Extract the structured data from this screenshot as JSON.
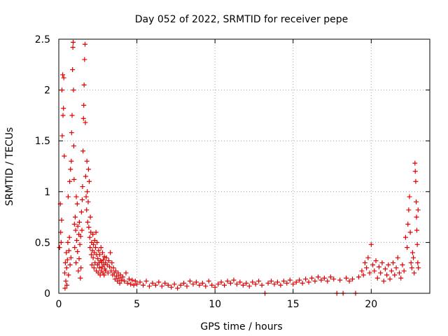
{
  "chart_data": {
    "type": "scatter",
    "title": "Day 052 of 2022, SRMTID for receiver pepe",
    "xlabel": "GPS time / hours",
    "ylabel": "SRMTID / TECUs",
    "xlim": [
      0,
      23.75
    ],
    "ylim": [
      0,
      2.5
    ],
    "xticks": [
      0,
      5,
      10,
      15,
      20
    ],
    "yticks": [
      0,
      0.5,
      1,
      1.5,
      2,
      2.5
    ],
    "xtick_labels": [
      "0",
      "5",
      "10",
      "15",
      "20"
    ],
    "ytick_labels": [
      "0",
      "0.5",
      "1",
      "1.5",
      "2",
      "2.5"
    ],
    "grid": true,
    "marker": "+",
    "series": [
      {
        "name": "pepe",
        "color": "#e00000",
        "points": [
          [
            0.05,
            0.45
          ],
          [
            0.1,
            0.88
          ],
          [
            0.12,
            0.6
          ],
          [
            0.15,
            0.5
          ],
          [
            0.18,
            0.72
          ],
          [
            0.2,
            2.0
          ],
          [
            0.22,
            1.55
          ],
          [
            0.25,
            2.15
          ],
          [
            0.27,
            1.75
          ],
          [
            0.3,
            1.82
          ],
          [
            0.32,
            2.12
          ],
          [
            0.35,
            1.35
          ],
          [
            0.38,
            0.2
          ],
          [
            0.4,
            0.05
          ],
          [
            0.42,
            0.3
          ],
          [
            0.45,
            0.12
          ],
          [
            0.48,
            0.4
          ],
          [
            0.5,
            0.25
          ],
          [
            0.52,
            0.08
          ],
          [
            0.55,
            0.33
          ],
          [
            0.58,
            0.5
          ],
          [
            0.6,
            0.95
          ],
          [
            0.62,
            0.18
          ],
          [
            0.65,
            0.42
          ],
          [
            0.68,
            0.55
          ],
          [
            0.7,
            1.1
          ],
          [
            0.72,
            0.28
          ],
          [
            0.75,
            1.22
          ],
          [
            0.78,
            0.35
          ],
          [
            0.8,
            1.3
          ],
          [
            0.82,
            1.58
          ],
          [
            0.85,
            1.75
          ],
          [
            0.88,
            2.2
          ],
          [
            0.9,
            2.42
          ],
          [
            0.92,
            2.47
          ],
          [
            0.94,
            2.0
          ],
          [
            0.96,
            1.45
          ],
          [
            0.98,
            1.12
          ],
          [
            1.0,
            0.68
          ],
          [
            1.02,
            0.45
          ],
          [
            1.05,
            0.75
          ],
          [
            1.08,
            0.62
          ],
          [
            1.1,
            0.3
          ],
          [
            1.12,
            0.95
          ],
          [
            1.15,
            0.52
          ],
          [
            1.18,
            0.88
          ],
          [
            1.2,
            0.41
          ],
          [
            1.22,
            0.66
          ],
          [
            1.25,
            0.22
          ],
          [
            1.28,
            0.58
          ],
          [
            1.3,
            0.34
          ],
          [
            1.32,
            0.7
          ],
          [
            1.35,
            0.48
          ],
          [
            1.38,
            0.15
          ],
          [
            1.4,
            0.56
          ],
          [
            1.42,
            0.25
          ],
          [
            1.45,
            0.8
          ],
          [
            1.48,
            0.62
          ],
          [
            1.5,
            0.92
          ],
          [
            1.52,
            1.05
          ],
          [
            1.55,
            1.4
          ],
          [
            1.58,
            1.72
          ],
          [
            1.6,
            1.85
          ],
          [
            1.62,
            2.05
          ],
          [
            1.65,
            2.3
          ],
          [
            1.68,
            2.45
          ],
          [
            1.7,
            1.68
          ],
          [
            1.72,
            1.15
          ],
          [
            1.75,
            0.95
          ],
          [
            1.78,
            0.82
          ],
          [
            1.8,
            1.3
          ],
          [
            1.82,
            1.0
          ],
          [
            1.85,
            0.7
          ],
          [
            1.88,
            0.9
          ],
          [
            1.9,
            1.22
          ],
          [
            1.92,
            0.65
          ],
          [
            1.95,
            1.1
          ],
          [
            1.98,
            0.55
          ],
          [
            2.0,
            0.45
          ],
          [
            2.02,
            0.75
          ],
          [
            2.05,
            0.6
          ],
          [
            2.08,
            0.38
          ],
          [
            2.1,
            0.5
          ],
          [
            2.12,
            0.28
          ],
          [
            2.15,
            0.42
          ],
          [
            2.18,
            0.58
          ],
          [
            2.2,
            0.35
          ],
          [
            2.22,
            0.48
          ],
          [
            2.25,
            0.25
          ],
          [
            2.28,
            0.4
          ],
          [
            2.3,
            0.52
          ],
          [
            2.32,
            0.3
          ],
          [
            2.35,
            0.45
          ],
          [
            2.38,
            0.6
          ],
          [
            2.4,
            0.22
          ],
          [
            2.42,
            0.38
          ],
          [
            2.45,
            0.5
          ],
          [
            2.48,
            0.28
          ],
          [
            2.5,
            0.34
          ],
          [
            2.52,
            0.2
          ],
          [
            2.55,
            0.42
          ],
          [
            2.58,
            0.3
          ],
          [
            2.6,
            0.25
          ],
          [
            2.62,
            0.38
          ],
          [
            2.65,
            0.18
          ],
          [
            2.68,
            0.32
          ],
          [
            2.7,
            0.45
          ],
          [
            2.72,
            0.22
          ],
          [
            2.75,
            0.3
          ],
          [
            2.78,
            0.26
          ],
          [
            2.8,
            0.4
          ],
          [
            2.82,
            0.2
          ],
          [
            2.85,
            0.33
          ],
          [
            2.88,
            0.28
          ],
          [
            2.9,
            0.18
          ],
          [
            2.92,
            0.36
          ],
          [
            2.95,
            0.24
          ],
          [
            2.98,
            0.3
          ],
          [
            3.0,
            0.22
          ],
          [
            3.05,
            0.35
          ],
          [
            3.1,
            0.28
          ],
          [
            3.15,
            0.2
          ],
          [
            3.2,
            0.32
          ],
          [
            3.25,
            0.26
          ],
          [
            3.3,
            0.4
          ],
          [
            3.35,
            0.22
          ],
          [
            3.4,
            0.3
          ],
          [
            3.45,
            0.18
          ],
          [
            3.5,
            0.25
          ],
          [
            3.55,
            0.2
          ],
          [
            3.6,
            0.14
          ],
          [
            3.65,
            0.22
          ],
          [
            3.7,
            0.17
          ],
          [
            3.75,
            0.12
          ],
          [
            3.8,
            0.2
          ],
          [
            3.85,
            0.15
          ],
          [
            3.9,
            0.1
          ],
          [
            3.95,
            0.18
          ],
          [
            4.0,
            0.13
          ],
          [
            4.1,
            0.16
          ],
          [
            4.2,
            0.12
          ],
          [
            4.3,
            0.2
          ],
          [
            4.4,
            0.1
          ],
          [
            4.5,
            0.14
          ],
          [
            4.6,
            0.09
          ],
          [
            4.7,
            0.13
          ],
          [
            4.8,
            0.08
          ],
          [
            4.9,
            0.12
          ],
          [
            5.0,
            0.09
          ],
          [
            5.2,
            0.11
          ],
          [
            5.4,
            0.08
          ],
          [
            5.6,
            0.12
          ],
          [
            5.8,
            0.07
          ],
          [
            6.0,
            0.1
          ],
          [
            6.2,
            0.08
          ],
          [
            6.4,
            0.11
          ],
          [
            6.6,
            0.07
          ],
          [
            6.8,
            0.1
          ],
          [
            7.0,
            0.08
          ],
          [
            7.2,
            0.06
          ],
          [
            7.4,
            0.09
          ],
          [
            7.6,
            0.05
          ],
          [
            7.8,
            0.08
          ],
          [
            8.0,
            0.1
          ],
          [
            8.2,
            0.07
          ],
          [
            8.4,
            0.12
          ],
          [
            8.6,
            0.09
          ],
          [
            8.8,
            0.11
          ],
          [
            9.0,
            0.08
          ],
          [
            9.2,
            0.1
          ],
          [
            9.4,
            0.07
          ],
          [
            9.6,
            0.12
          ],
          [
            9.8,
            0.08
          ],
          [
            10.0,
            0.06
          ],
          [
            10.2,
            0.09
          ],
          [
            10.4,
            0.11
          ],
          [
            10.6,
            0.08
          ],
          [
            10.8,
            0.12
          ],
          [
            11.0,
            0.1
          ],
          [
            11.2,
            0.13
          ],
          [
            11.4,
            0.09
          ],
          [
            11.6,
            0.11
          ],
          [
            11.8,
            0.08
          ],
          [
            12.0,
            0.1
          ],
          [
            12.2,
            0.07
          ],
          [
            12.4,
            0.11
          ],
          [
            12.6,
            0.09
          ],
          [
            12.8,
            0.12
          ],
          [
            13.0,
            0.08
          ],
          [
            13.2,
            0.0
          ],
          [
            13.4,
            0.1
          ],
          [
            13.6,
            0.12
          ],
          [
            13.8,
            0.09
          ],
          [
            14.0,
            0.11
          ],
          [
            14.2,
            0.08
          ],
          [
            14.4,
            0.12
          ],
          [
            14.6,
            0.1
          ],
          [
            14.8,
            0.13
          ],
          [
            15.0,
            0.09
          ],
          [
            15.2,
            0.11
          ],
          [
            15.4,
            0.13
          ],
          [
            15.6,
            0.1
          ],
          [
            15.8,
            0.14
          ],
          [
            16.0,
            0.11
          ],
          [
            16.2,
            0.15
          ],
          [
            16.4,
            0.12
          ],
          [
            16.6,
            0.16
          ],
          [
            16.8,
            0.13
          ],
          [
            17.0,
            0.15
          ],
          [
            17.2,
            0.12
          ],
          [
            17.4,
            0.16
          ],
          [
            17.6,
            0.14
          ],
          [
            17.8,
            0.0
          ],
          [
            18.0,
            0.13
          ],
          [
            18.2,
            0.0
          ],
          [
            18.4,
            0.15
          ],
          [
            18.6,
            0.12
          ],
          [
            18.8,
            0.14
          ],
          [
            19.0,
            0.0
          ],
          [
            19.2,
            0.16
          ],
          [
            19.4,
            0.22
          ],
          [
            19.5,
            0.18
          ],
          [
            19.6,
            0.3
          ],
          [
            19.7,
            0.25
          ],
          [
            19.8,
            0.35
          ],
          [
            19.9,
            0.2
          ],
          [
            20.0,
            0.48
          ],
          [
            20.1,
            0.28
          ],
          [
            20.2,
            0.22
          ],
          [
            20.3,
            0.32
          ],
          [
            20.4,
            0.15
          ],
          [
            20.5,
            0.26
          ],
          [
            20.6,
            0.2
          ],
          [
            20.7,
            0.3
          ],
          [
            20.8,
            0.12
          ],
          [
            20.9,
            0.24
          ],
          [
            21.0,
            0.18
          ],
          [
            21.1,
            0.28
          ],
          [
            21.2,
            0.14
          ],
          [
            21.3,
            0.22
          ],
          [
            21.4,
            0.3
          ],
          [
            21.5,
            0.18
          ],
          [
            21.6,
            0.25
          ],
          [
            21.7,
            0.35
          ],
          [
            21.8,
            0.2
          ],
          [
            21.9,
            0.15
          ],
          [
            22.0,
            0.28
          ],
          [
            22.1,
            0.22
          ],
          [
            22.2,
            0.55
          ],
          [
            22.3,
            0.45
          ],
          [
            22.35,
            0.68
          ],
          [
            22.4,
            0.82
          ],
          [
            22.45,
            0.95
          ],
          [
            22.5,
            0.6
          ],
          [
            22.55,
            0.3
          ],
          [
            22.6,
            0.25
          ],
          [
            22.65,
            0.4
          ],
          [
            22.7,
            0.35
          ],
          [
            22.75,
            0.2
          ],
          [
            22.8,
            1.28
          ],
          [
            22.82,
            1.2
          ],
          [
            22.85,
            1.1
          ],
          [
            22.88,
            0.9
          ],
          [
            22.9,
            0.75
          ],
          [
            22.92,
            0.62
          ],
          [
            22.95,
            0.48
          ],
          [
            22.98,
            0.3
          ],
          [
            23.0,
            0.82
          ],
          [
            23.02,
            0.25
          ]
        ]
      }
    ]
  }
}
